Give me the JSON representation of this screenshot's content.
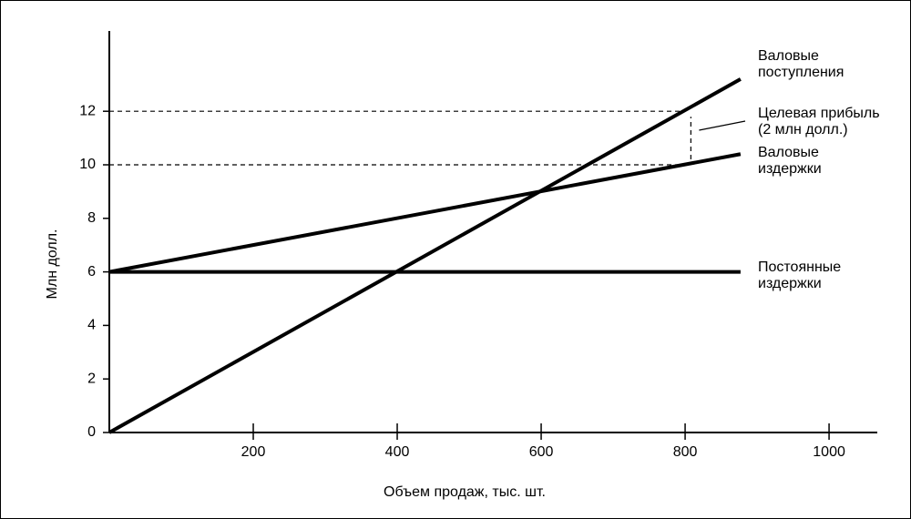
{
  "chart_data": {
    "type": "line",
    "x_label": "Объем  продаж, тыс. шт.",
    "y_label": "Млн долл.",
    "xlim": [
      0,
      1067
    ],
    "ylim": [
      0,
      15
    ],
    "xticks": [
      200,
      400,
      600,
      800,
      1000
    ],
    "yticks": [
      0,
      2,
      4,
      6,
      8,
      10,
      12
    ],
    "x": [
      0,
      877
    ],
    "series": [
      {
        "name": [
          "Валовые",
          "поступления"
        ],
        "color": "#000000",
        "values": [
          0,
          13.2
        ]
      },
      {
        "name": [
          "Валовые",
          "издержки"
        ],
        "color": "#000000",
        "values": [
          6,
          10.4
        ]
      },
      {
        "name": [
          "Постоянные",
          "издержки"
        ],
        "color": "#000000",
        "values": [
          6,
          6
        ]
      }
    ],
    "target": {
      "label": [
        "Целевая прибыль",
        "(2 млн долл.)"
      ],
      "x": 808,
      "y": [
        10,
        12
      ]
    }
  }
}
